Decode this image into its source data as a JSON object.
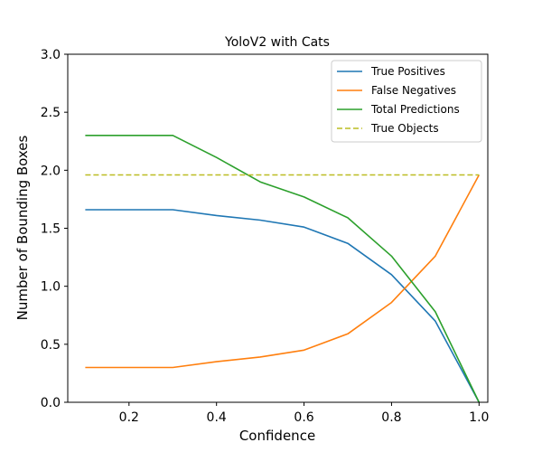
{
  "chart_data": {
    "type": "line",
    "title": "YoloV2 with Cats",
    "xlabel": "Confidence",
    "ylabel": "Number of Bounding Boxes",
    "xlim": [
      0.06,
      1.02
    ],
    "ylim": [
      0.0,
      3.0
    ],
    "xticks": [
      0.2,
      0.4,
      0.6,
      0.8,
      1.0
    ],
    "xtick_labels": [
      "0.2",
      "0.4",
      "0.6",
      "0.8",
      "1.0"
    ],
    "yticks": [
      0.0,
      0.5,
      1.0,
      1.5,
      2.0,
      2.5,
      3.0
    ],
    "ytick_labels": [
      "0.0",
      "0.5",
      "1.0",
      "1.5",
      "2.0",
      "2.5",
      "3.0"
    ],
    "grid": false,
    "legend_position": "top-right",
    "x": [
      0.1,
      0.2,
      0.3,
      0.4,
      0.5,
      0.6,
      0.7,
      0.8,
      0.9,
      1.0
    ],
    "series": [
      {
        "name": "True Positives",
        "color": "#1f77b4",
        "style": "solid",
        "values": [
          1.66,
          1.66,
          1.66,
          1.61,
          1.57,
          1.51,
          1.37,
          1.1,
          0.7,
          0.0
        ]
      },
      {
        "name": "False Negatives",
        "color": "#ff7f0e",
        "style": "solid",
        "values": [
          0.3,
          0.3,
          0.3,
          0.35,
          0.39,
          0.45,
          0.59,
          0.86,
          1.26,
          1.96
        ]
      },
      {
        "name": "Total Predictions",
        "color": "#2ca02c",
        "style": "solid",
        "values": [
          2.3,
          2.3,
          2.3,
          2.11,
          1.9,
          1.77,
          1.59,
          1.26,
          0.78,
          0.0
        ]
      },
      {
        "name": "True Objects",
        "color": "#bcbd22",
        "style": "dashed",
        "values": [
          1.96,
          1.96,
          1.96,
          1.96,
          1.96,
          1.96,
          1.96,
          1.96,
          1.96,
          1.96
        ]
      }
    ]
  }
}
